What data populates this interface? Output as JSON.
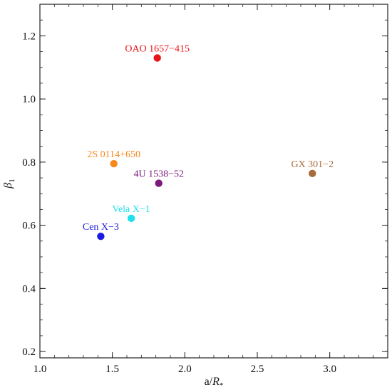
{
  "chart_data": {
    "type": "scatter",
    "xlabel_main": "a/",
    "xlabel_italic": "R",
    "xlabel_sub": "*",
    "ylabel_main": "β",
    "ylabel_sub": "1",
    "xlim": [
      1.0,
      3.4
    ],
    "ylim": [
      0.18,
      1.3
    ],
    "x_ticks": [
      1.0,
      1.5,
      2.0,
      2.5,
      3.0
    ],
    "y_ticks": [
      0.2,
      0.4,
      0.6,
      0.8,
      1.0,
      1.2
    ],
    "x_tick_labels": [
      "1.0",
      "1.5",
      "2.0",
      "2.5",
      "3.0"
    ],
    "y_tick_labels": [
      "0.2",
      "0.4",
      "0.6",
      "0.8",
      "1.0",
      "1.2"
    ],
    "grid": false,
    "points": [
      {
        "label": "OAO 1657-415",
        "x": 1.81,
        "y": 1.13,
        "color": "#e8141b",
        "label_dx": 0,
        "label_dy": -1
      },
      {
        "label": "2S 0114+650",
        "x": 1.51,
        "y": 0.795,
        "color": "#f5891e",
        "label_dx": 0,
        "label_dy": -1
      },
      {
        "label": "4U 1538-52",
        "x": 1.82,
        "y": 0.733,
        "color": "#7b1a7b",
        "label_dx": 0,
        "label_dy": -1
      },
      {
        "label": "GX 301-2",
        "x": 2.88,
        "y": 0.764,
        "color": "#a86c3c",
        "label_dx": 0,
        "label_dy": -1
      },
      {
        "label": "Vela X-1",
        "x": 1.63,
        "y": 0.622,
        "color": "#22e0ea",
        "label_dx": 0,
        "label_dy": -1
      },
      {
        "label": "Cen X-3",
        "x": 1.42,
        "y": 0.565,
        "color": "#1a1ae0",
        "label_dx": 0,
        "label_dy": -1
      }
    ]
  }
}
